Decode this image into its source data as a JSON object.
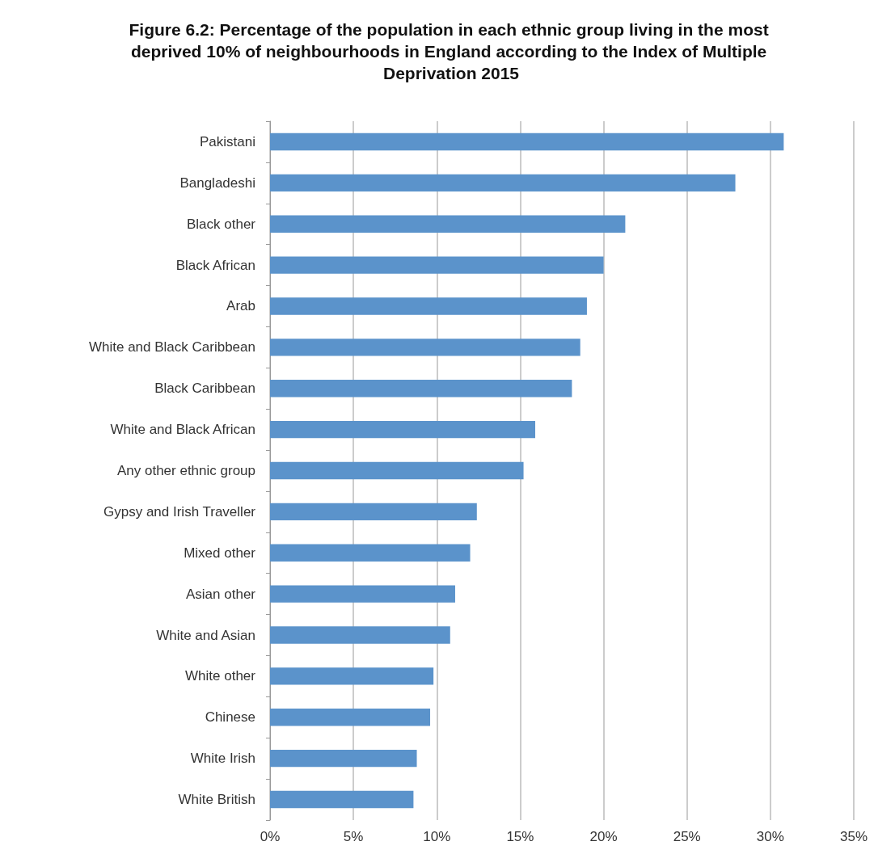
{
  "chart_data": {
    "type": "bar",
    "orientation": "horizontal",
    "title": "Figure 6.2: Percentage of the population in each ethnic group living in the most deprived 10% of neighbourhoods in England according to the Index of Multiple Deprivation 2015",
    "categories": [
      "Pakistani",
      "Bangladeshi",
      "Black other",
      "Black African",
      "Arab",
      "White and Black Caribbean",
      "Black Caribbean",
      "White and Black African",
      "Any other ethnic group",
      "Gypsy and Irish Traveller",
      "Mixed other",
      "Asian other",
      "White and Asian",
      "White other",
      "Chinese",
      "White Irish",
      "White British"
    ],
    "values": [
      30.8,
      27.9,
      21.3,
      20.0,
      19.0,
      18.6,
      18.1,
      15.9,
      15.2,
      12.4,
      12.0,
      11.1,
      10.8,
      9.8,
      9.6,
      8.8,
      8.6
    ],
    "color": "#5b93cb",
    "xlim": [
      0,
      35
    ],
    "xticks": [
      {
        "value": 0,
        "label": "0%"
      },
      {
        "value": 5,
        "label": "5%"
      },
      {
        "value": 10,
        "label": "10%"
      },
      {
        "value": 15,
        "label": "15%"
      },
      {
        "value": 20,
        "label": "20%"
      },
      {
        "value": 25,
        "label": "25%"
      },
      {
        "value": 30,
        "label": "30%"
      },
      {
        "value": 35,
        "label": "35%"
      }
    ],
    "grid": "x"
  }
}
